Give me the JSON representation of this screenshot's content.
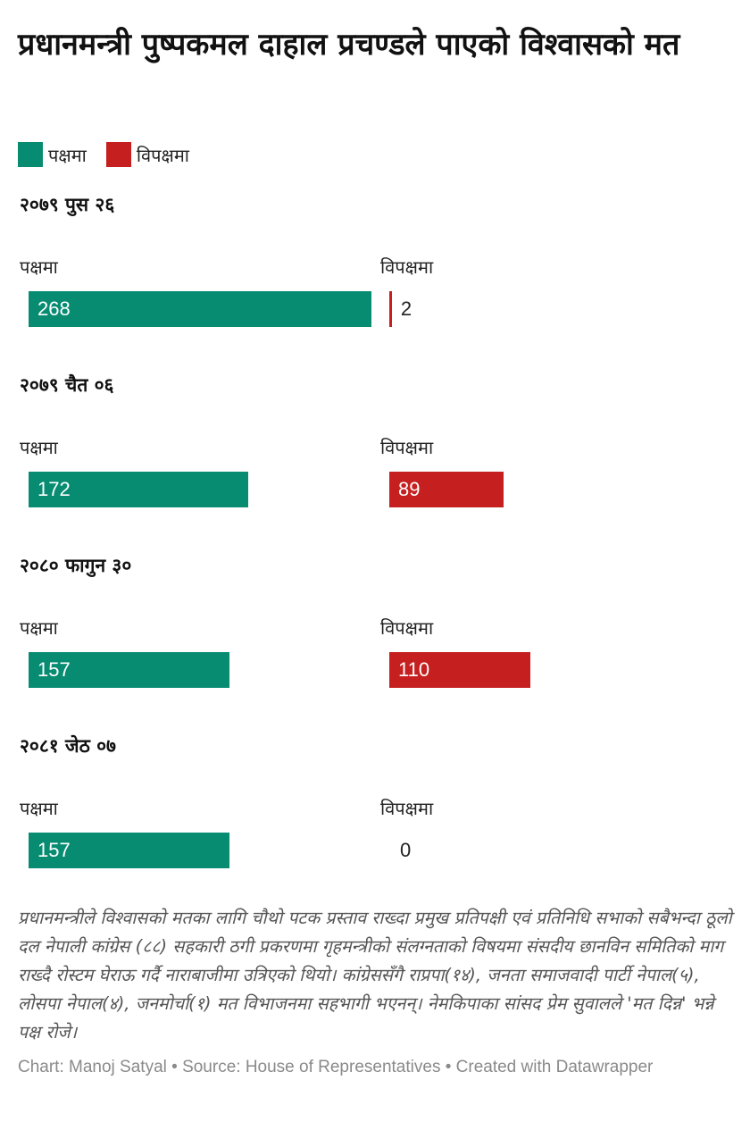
{
  "title": "प्रधानमन्त्री पुष्पकमल दाहाल प्रचण्डले पाएको विश्वासको मत",
  "legend": [
    {
      "label": "पक्षमा",
      "color": "#078c72"
    },
    {
      "label": "विपक्षमा",
      "color": "#c61f1f"
    }
  ],
  "chart_data": {
    "type": "bar",
    "title": "प्रधानमन्त्री पुष्पकमल दाहाल प्रचण्डले पाएको विश्वासको मत",
    "categories": [
      "२०७९ पुस २६",
      "२०७९ चैत ०६",
      "२०८० फागुन ३०",
      "२०८१ जेठ ०७"
    ],
    "series": [
      {
        "name": "पक्षमा",
        "color": "#078c72",
        "values": [
          268,
          172,
          157,
          157
        ]
      },
      {
        "name": "विपक्षमा",
        "color": "#c61f1f",
        "values": [
          2,
          89,
          110,
          0
        ]
      }
    ],
    "xlim": [
      0,
      268
    ],
    "legend": "top-left",
    "grid": false
  },
  "panels": [
    {
      "title": "२०७९ पुस २६",
      "for_label": "पक्षमा",
      "against_label": "विपक्षमा",
      "for_value": "268",
      "against_value": "2"
    },
    {
      "title": "२०७९ चैत ०६",
      "for_label": "पक्षमा",
      "against_label": "विपक्षमा",
      "for_value": "172",
      "against_value": "89"
    },
    {
      "title": "२०८० फागुन ३०",
      "for_label": "पक्षमा",
      "against_label": "विपक्षमा",
      "for_value": "157",
      "against_value": "110"
    },
    {
      "title": "२०८१ जेठ ०७",
      "for_label": "पक्षमा",
      "against_label": "विपक्षमा",
      "for_value": "157",
      "against_value": "0"
    }
  ],
  "note": "प्रधानमन्त्रीले विश्वासको मतका लागि चौथो पटक प्रस्ताव राख्दा प्रमुख प्रतिपक्षी एवं प्रतिनिधि सभाको सबैभन्दा ठूलो दल नेपाली कांग्रेस (८८) सहकारी ठगी प्रकरणमा गृहमन्त्रीको संलग्नताको विषयमा संसदीय छानविन समितिको माग राख्दै रोस्टम घेराऊ गर्दै नाराबाजीमा उत्रिएको थियो। कांग्रेससँगै राप्रपा(१४), जनता समाजवादी पार्टी नेपाल(५), लोसपा नेपाल(४), जनमोर्चा(१) मत विभाजनमा सहभागी भएनन्। नेमकिपाका सांसद प्रेम सुवालले 'मत दिन्न' भन्ने पक्ष रोजे।",
  "footer": "Chart: Manoj Satyal • Source: House of Representatives • Created with Datawrapper"
}
